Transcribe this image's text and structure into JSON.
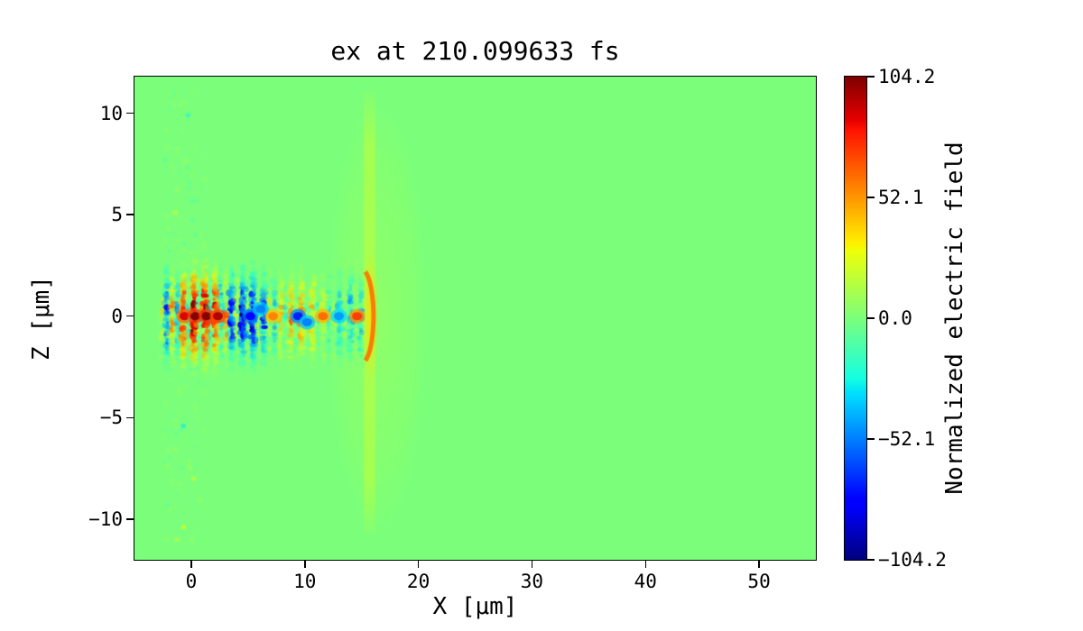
{
  "chart_data": {
    "type": "heatmap",
    "title": "ex at 210.099633 fs",
    "xlabel": "X [μm]",
    "ylabel": "Z [μm]",
    "xlim": [
      -5,
      55
    ],
    "ylim": [
      -12,
      11.8
    ],
    "grid": false,
    "xticks": {
      "values": [
        0,
        10,
        20,
        30,
        40,
        50
      ],
      "labels": [
        "0",
        "10",
        "20",
        "30",
        "40",
        "50"
      ]
    },
    "yticks": {
      "values": [
        -10,
        -5,
        0,
        5,
        10
      ],
      "labels": [
        "−10",
        "−5",
        "0",
        "5",
        "10"
      ]
    },
    "colorbar": {
      "label": "Normalized electric field",
      "colormap": "jet",
      "vmin": -104.2,
      "vmax": 104.2,
      "ticks": [
        {
          "value": 104.2,
          "label": "104.2"
        },
        {
          "value": 52.1,
          "label": "52.1"
        },
        {
          "value": 0,
          "label": "0.0"
        },
        {
          "value": -52.1,
          "label": "−52.1"
        },
        {
          "value": -104.2,
          "label": "−104.2"
        }
      ]
    },
    "field": {
      "description": "2D map of normalized electric field ex at t=210.099633 fs: uniform zero-field green background; speckled laser-wakefield pulse oscillating red/blue along z=0 from x≈-2.5 to 15 μm with strongest red spikes near x≈0–2.5 μm; orange bow-shaped ionization front at x≈15 μm; thin yellow-green vertical band at x≈15.2–16.2 μm spanning z≈-10.7 to 11 μm with a faint yellow halo extending right to x≈20 μm; sparse faint speckle noise near x≈-1 μm at larger |z|",
      "background_value": 0.0,
      "seed": 20,
      "wake": {
        "x0": -2.5,
        "x1": 15.0,
        "z_half": 2.9,
        "peak_x": 1.2,
        "carrier_wavelength_um": 0.95,
        "slow_wavelength_um": 9.0
      },
      "hot_spots": [
        {
          "x": -0.6,
          "z": 0.0,
          "v": 0.85
        },
        {
          "x": 0.35,
          "z": 0.0,
          "v": 1.0
        },
        {
          "x": 1.35,
          "z": 0.0,
          "v": 1.0
        },
        {
          "x": 2.35,
          "z": 0.0,
          "v": 0.92
        },
        {
          "x": 7.2,
          "z": 0.0,
          "v": 0.55
        },
        {
          "x": 11.6,
          "z": 0.0,
          "v": 0.6
        },
        {
          "x": 14.6,
          "z": 0.0,
          "v": 0.7
        }
      ],
      "cold_spots": [
        {
          "x": 5.2,
          "z": 0.0,
          "v": -0.75
        },
        {
          "x": 6.1,
          "z": 0.35,
          "v": -0.5
        },
        {
          "x": 9.4,
          "z": 0.0,
          "v": -0.7
        },
        {
          "x": 10.2,
          "z": -0.3,
          "v": -0.5
        },
        {
          "x": 13.0,
          "z": 0.0,
          "v": -0.45
        }
      ],
      "front_band": {
        "x_center": 15.7,
        "width_um": 1.0,
        "z0": -10.7,
        "z1": 11.0,
        "value": 0.12
      },
      "front_center_glow": {
        "x_center": 15.8,
        "width_um": 1.4,
        "z_half": 3.2,
        "value": 0.35
      },
      "front_arc": {
        "x": 15.0,
        "z": 0.0,
        "rx_um": 1.05,
        "rz_um": 2.3,
        "value": 0.6
      },
      "halo": {
        "x": 16.4,
        "z": 0.0,
        "rx_um": 4.4,
        "rz_um": 10.6,
        "value": 0.09
      },
      "noise_column": {
        "x0": -2.4,
        "x1": 1.3,
        "z_sd": 6.0,
        "count": 300
      },
      "outliers": [
        {
          "x": -0.7,
          "z": -5.4,
          "v": -0.3
        },
        {
          "x": -0.7,
          "z": -10.4,
          "v": 0.28
        },
        {
          "x": -0.3,
          "z": 9.9,
          "v": -0.26
        },
        {
          "x": -1.4,
          "z": 5.1,
          "v": 0.22
        },
        {
          "x": 0.2,
          "z": -8.0,
          "v": 0.2
        }
      ]
    }
  }
}
